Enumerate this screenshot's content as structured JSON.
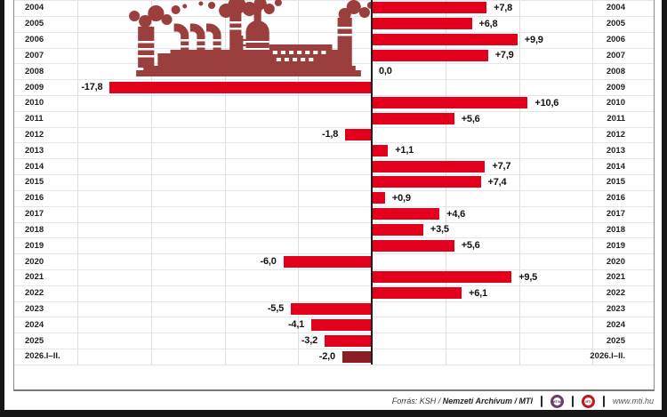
{
  "chart_data": {
    "type": "bar",
    "orientation": "horizontal",
    "categories": [
      "2004",
      "2005",
      "2006",
      "2007",
      "2008",
      "2009",
      "2010",
      "2011",
      "2012",
      "2013",
      "2014",
      "2015",
      "2016",
      "2017",
      "2018",
      "2019",
      "2020",
      "2021",
      "2022",
      "2023",
      "2024",
      "2025",
      "2026.I–II."
    ],
    "values": [
      7.8,
      6.8,
      9.9,
      7.9,
      0.0,
      -17.8,
      10.6,
      5.6,
      -1.8,
      1.1,
      7.7,
      7.4,
      0.9,
      4.6,
      3.5,
      5.6,
      -6.0,
      9.5,
      6.1,
      -5.5,
      -4.1,
      -3.2,
      -2.0
    ],
    "value_labels": [
      "+7,8",
      "+6,8",
      "+9,9",
      "+7,9",
      "0,0",
      "-17,8",
      "+10,6",
      "+5,6",
      "-1,8",
      "+1,1",
      "+7,7",
      "+7,4",
      "+0,9",
      "+4,6",
      "+3,5",
      "+5,6",
      "-6,0",
      "+9,5",
      "+6,1",
      "-5,5",
      "-4,1",
      "-3,2",
      "-2,0"
    ],
    "xlim": [
      -20,
      20
    ],
    "grid_step": 5,
    "grid": true,
    "year_labels_both_sides": true,
    "highlight_last_bar": true,
    "colors": {
      "bar": "#e2001c",
      "bar_highlight": "#8e1c24",
      "grid": "#e3dede",
      "axis": "#1d1d1d",
      "year_label": "#222222",
      "value_label": "#111111"
    }
  },
  "factory_icon": {
    "color": "#9a3e3e"
  },
  "footer": {
    "source_normal": "Forrás: KSH /",
    "source_bold": "Nemzeti Archívum / MTI",
    "logo_mtva": "MTVA",
    "logo_mti": "MTI",
    "website": "www.mti.hu"
  }
}
